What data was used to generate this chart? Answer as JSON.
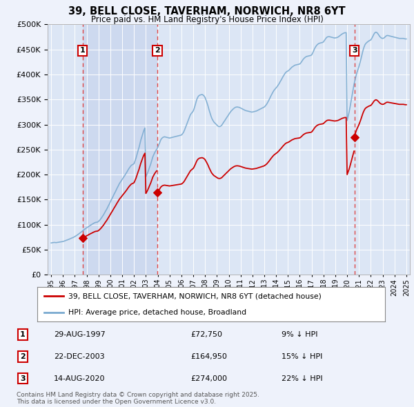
{
  "title": "39, BELL CLOSE, TAVERHAM, NORWICH, NR8 6YT",
  "subtitle": "Price paid vs. HM Land Registry's House Price Index (HPI)",
  "bg_color": "#eef2fb",
  "plot_bg_color": "#dce6f5",
  "shade_color": "#cdd9ef",
  "grid_color": "#ffffff",
  "sale_color": "#cc0000",
  "hpi_color": "#7aaad0",
  "sale_label": "39, BELL CLOSE, TAVERHAM, NORWICH, NR8 6YT (detached house)",
  "hpi_label": "HPI: Average price, detached house, Broadland",
  "footnote": "Contains HM Land Registry data © Crown copyright and database right 2025.\nThis data is licensed under the Open Government Licence v3.0.",
  "markers": [
    {
      "num": 1,
      "date": "29-AUG-1997",
      "price": 72750,
      "pct": "9% ↓ HPI",
      "x_year": 1997.65
    },
    {
      "num": 2,
      "date": "22-DEC-2003",
      "price": 164950,
      "pct": "15% ↓ HPI",
      "x_year": 2003.97
    },
    {
      "num": 3,
      "date": "14-AUG-2020",
      "price": 274000,
      "pct": "22% ↓ HPI",
      "x_year": 2020.62
    }
  ],
  "ylim": [
    0,
    500000
  ],
  "yticks": [
    0,
    50000,
    100000,
    150000,
    200000,
    250000,
    300000,
    350000,
    400000,
    450000,
    500000
  ],
  "xlim": [
    1994.7,
    2025.3
  ],
  "hpi_index": {
    "years": [
      1995.0,
      1995.08,
      1995.17,
      1995.25,
      1995.33,
      1995.42,
      1995.5,
      1995.58,
      1995.67,
      1995.75,
      1995.83,
      1995.92,
      1996.0,
      1996.08,
      1996.17,
      1996.25,
      1996.33,
      1996.42,
      1996.5,
      1996.58,
      1996.67,
      1996.75,
      1996.83,
      1996.92,
      1997.0,
      1997.08,
      1997.17,
      1997.25,
      1997.33,
      1997.42,
      1997.5,
      1997.58,
      1997.67,
      1997.75,
      1997.83,
      1997.92,
      1998.0,
      1998.08,
      1998.17,
      1998.25,
      1998.33,
      1998.42,
      1998.5,
      1998.58,
      1998.67,
      1998.75,
      1998.83,
      1998.92,
      1999.0,
      1999.08,
      1999.17,
      1999.25,
      1999.33,
      1999.42,
      1999.5,
      1999.58,
      1999.67,
      1999.75,
      1999.83,
      1999.92,
      2000.0,
      2000.08,
      2000.17,
      2000.25,
      2000.33,
      2000.42,
      2000.5,
      2000.58,
      2000.67,
      2000.75,
      2000.83,
      2000.92,
      2001.0,
      2001.08,
      2001.17,
      2001.25,
      2001.33,
      2001.42,
      2001.5,
      2001.58,
      2001.67,
      2001.75,
      2001.83,
      2001.92,
      2002.0,
      2002.08,
      2002.17,
      2002.25,
      2002.33,
      2002.42,
      2002.5,
      2002.58,
      2002.67,
      2002.75,
      2002.83,
      2002.92,
      2003.0,
      2003.08,
      2003.17,
      2003.25,
      2003.33,
      2003.42,
      2003.5,
      2003.58,
      2003.67,
      2003.75,
      2003.83,
      2003.92,
      2004.0,
      2004.08,
      2004.17,
      2004.25,
      2004.33,
      2004.42,
      2004.5,
      2004.58,
      2004.67,
      2004.75,
      2004.83,
      2004.92,
      2005.0,
      2005.08,
      2005.17,
      2005.25,
      2005.33,
      2005.42,
      2005.5,
      2005.58,
      2005.67,
      2005.75,
      2005.83,
      2005.92,
      2006.0,
      2006.08,
      2006.17,
      2006.25,
      2006.33,
      2006.42,
      2006.5,
      2006.58,
      2006.67,
      2006.75,
      2006.83,
      2006.92,
      2007.0,
      2007.08,
      2007.17,
      2007.25,
      2007.33,
      2007.42,
      2007.5,
      2007.58,
      2007.67,
      2007.75,
      2007.83,
      2007.92,
      2008.0,
      2008.08,
      2008.17,
      2008.25,
      2008.33,
      2008.42,
      2008.5,
      2008.58,
      2008.67,
      2008.75,
      2008.83,
      2008.92,
      2009.0,
      2009.08,
      2009.17,
      2009.25,
      2009.33,
      2009.42,
      2009.5,
      2009.58,
      2009.67,
      2009.75,
      2009.83,
      2009.92,
      2010.0,
      2010.08,
      2010.17,
      2010.25,
      2010.33,
      2010.42,
      2010.5,
      2010.58,
      2010.67,
      2010.75,
      2010.83,
      2010.92,
      2011.0,
      2011.08,
      2011.17,
      2011.25,
      2011.33,
      2011.42,
      2011.5,
      2011.58,
      2011.67,
      2011.75,
      2011.83,
      2011.92,
      2012.0,
      2012.08,
      2012.17,
      2012.25,
      2012.33,
      2012.42,
      2012.5,
      2012.58,
      2012.67,
      2012.75,
      2012.83,
      2012.92,
      2013.0,
      2013.08,
      2013.17,
      2013.25,
      2013.33,
      2013.42,
      2013.5,
      2013.58,
      2013.67,
      2013.75,
      2013.83,
      2013.92,
      2014.0,
      2014.08,
      2014.17,
      2014.25,
      2014.33,
      2014.42,
      2014.5,
      2014.58,
      2014.67,
      2014.75,
      2014.83,
      2014.92,
      2015.0,
      2015.08,
      2015.17,
      2015.25,
      2015.33,
      2015.42,
      2015.5,
      2015.58,
      2015.67,
      2015.75,
      2015.83,
      2015.92,
      2016.0,
      2016.08,
      2016.17,
      2016.25,
      2016.33,
      2016.42,
      2016.5,
      2016.58,
      2016.67,
      2016.75,
      2016.83,
      2016.92,
      2017.0,
      2017.08,
      2017.17,
      2017.25,
      2017.33,
      2017.42,
      2017.5,
      2017.58,
      2017.67,
      2017.75,
      2017.83,
      2017.92,
      2018.0,
      2018.08,
      2018.17,
      2018.25,
      2018.33,
      2018.42,
      2018.5,
      2018.58,
      2018.67,
      2018.75,
      2018.83,
      2018.92,
      2019.0,
      2019.08,
      2019.17,
      2019.25,
      2019.33,
      2019.42,
      2019.5,
      2019.58,
      2019.67,
      2019.75,
      2019.83,
      2019.92,
      2020.0,
      2020.08,
      2020.17,
      2020.25,
      2020.33,
      2020.42,
      2020.5,
      2020.58,
      2020.67,
      2020.75,
      2020.83,
      2020.92,
      2021.0,
      2021.08,
      2021.17,
      2021.25,
      2021.33,
      2021.42,
      2021.5,
      2021.58,
      2021.67,
      2021.75,
      2021.83,
      2021.92,
      2022.0,
      2022.08,
      2022.17,
      2022.25,
      2022.33,
      2022.42,
      2022.5,
      2022.58,
      2022.67,
      2022.75,
      2022.83,
      2022.92,
      2023.0,
      2023.08,
      2023.17,
      2023.25,
      2023.33,
      2023.42,
      2023.5,
      2023.58,
      2023.67,
      2023.75,
      2023.83,
      2023.92,
      2024.0,
      2024.08,
      2024.17,
      2024.25,
      2024.33,
      2024.42,
      2024.5,
      2024.58,
      2024.67,
      2024.75,
      2024.83,
      2024.92,
      2025.0
    ],
    "values": [
      63500,
      63800,
      64200,
      64500,
      64300,
      64100,
      64400,
      64700,
      65000,
      65300,
      65600,
      65900,
      66400,
      67000,
      67800,
      68500,
      69200,
      70000,
      70800,
      71600,
      72400,
      73300,
      74200,
      75100,
      76200,
      77400,
      78700,
      80100,
      81500,
      83000,
      84600,
      86200,
      87800,
      89400,
      90900,
      92400,
      93800,
      95100,
      96400,
      97800,
      99000,
      100200,
      101400,
      102600,
      103700,
      104500,
      104900,
      105200,
      106500,
      108500,
      111000,
      113500,
      116500,
      119500,
      123000,
      126500,
      130000,
      133500,
      137500,
      141500,
      145500,
      149500,
      153500,
      157500,
      161500,
      165500,
      169500,
      173500,
      177500,
      181500,
      184500,
      187500,
      190500,
      193500,
      196500,
      199500,
      202500,
      206000,
      209500,
      212500,
      215500,
      218000,
      219500,
      220500,
      222000,
      227000,
      233000,
      240000,
      247000,
      254000,
      262000,
      269500,
      276500,
      283000,
      288500,
      293000,
      196000,
      200000,
      205000,
      210500,
      216000,
      222000,
      228500,
      235000,
      240000,
      244000,
      247500,
      250500,
      254000,
      259000,
      264000,
      269000,
      272000,
      274000,
      275000,
      275500,
      275000,
      274500,
      274000,
      273500,
      273000,
      273500,
      274000,
      274500,
      275000,
      275500,
      276000,
      276500,
      277000,
      277500,
      278000,
      278500,
      279000,
      281000,
      284000,
      288000,
      293000,
      298500,
      304000,
      309000,
      314000,
      319000,
      322000,
      324500,
      327000,
      332000,
      339000,
      346000,
      352000,
      356000,
      358000,
      359000,
      359500,
      360000,
      359000,
      357000,
      354000,
      349000,
      343000,
      337000,
      330000,
      323000,
      317000,
      312000,
      308000,
      305000,
      303000,
      301000,
      299000,
      297000,
      296000,
      296000,
      297000,
      299000,
      302000,
      305000,
      308000,
      311000,
      314000,
      317000,
      320000,
      323000,
      326000,
      328000,
      330000,
      332000,
      333500,
      334500,
      335000,
      335000,
      334500,
      334000,
      333000,
      332000,
      331000,
      330000,
      329000,
      328000,
      327500,
      327000,
      326500,
      326000,
      325500,
      325000,
      325000,
      325500,
      326000,
      326500,
      327000,
      328000,
      329000,
      330000,
      331000,
      332000,
      333000,
      334000,
      335000,
      337000,
      339500,
      342500,
      346000,
      350000,
      354000,
      358000,
      362000,
      365500,
      368500,
      371000,
      373000,
      375500,
      378500,
      381500,
      385000,
      388500,
      392000,
      395500,
      399000,
      402000,
      404500,
      406000,
      407000,
      408500,
      410500,
      412500,
      414500,
      416000,
      417500,
      418500,
      419000,
      419500,
      420000,
      420500,
      421000,
      423000,
      426000,
      429000,
      431500,
      433500,
      435000,
      436000,
      436500,
      437000,
      437500,
      438000,
      439000,
      442500,
      447000,
      451500,
      455000,
      458000,
      460000,
      461500,
      462500,
      463000,
      463500,
      464000,
      465000,
      468000,
      471000,
      473500,
      475000,
      475500,
      475500,
      475000,
      474500,
      474000,
      473500,
      473000,
      473000,
      473500,
      474000,
      475000,
      476500,
      478000,
      479500,
      481000,
      482000,
      483000,
      483500,
      483500,
      308000,
      316000,
      325000,
      335000,
      346000,
      358000,
      370000,
      380000,
      389000,
      397000,
      404000,
      410000,
      416000,
      423000,
      431000,
      439000,
      447000,
      454000,
      459000,
      462000,
      464000,
      465500,
      467000,
      468000,
      469000,
      472000,
      476000,
      480000,
      483000,
      484500,
      484000,
      482000,
      479000,
      476000,
      474000,
      472500,
      472000,
      472500,
      474000,
      476000,
      477500,
      478000,
      477500,
      477000,
      476500,
      476000,
      475500,
      475000,
      474500,
      474000,
      473500,
      473000,
      472500,
      472000,
      472000,
      472000,
      472000,
      472000,
      471500,
      471000,
      471000
    ]
  },
  "sale_data": {
    "years": [
      1997.65,
      2003.97,
      2020.62
    ],
    "prices": [
      72750,
      164950,
      274000
    ]
  }
}
